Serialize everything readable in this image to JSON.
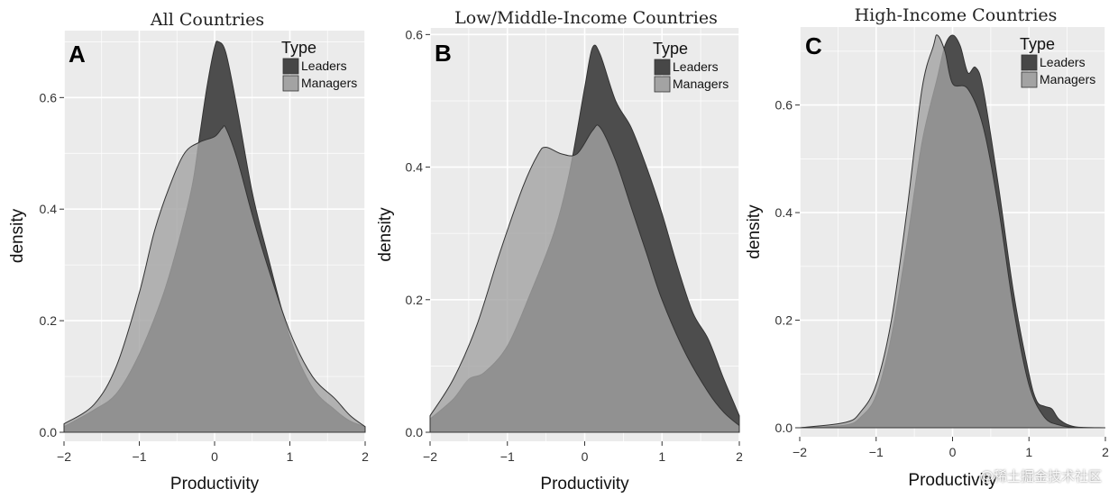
{
  "figure": {
    "colors": {
      "panel_bg": "#ebebeb",
      "grid": "#ffffff",
      "leaders": "#474747",
      "managers": "#a3a3a3",
      "outline": "#333333"
    },
    "watermark": "@稀土掘金技术社区"
  },
  "chart_data": [
    {
      "type": "area",
      "panel_label": "A",
      "title": "All Countries",
      "xlabel": "Productivity",
      "ylabel": "density",
      "xlim": [
        -2,
        2
      ],
      "ylim": [
        0,
        0.72
      ],
      "xticks": [
        -2,
        -1,
        0,
        1,
        2
      ],
      "xtick_labels": [
        "−2",
        "−1",
        "0",
        "1",
        "2"
      ],
      "yticks": [
        0,
        0.2,
        0.4,
        0.6
      ],
      "ytick_labels": [
        "0.0",
        "0.2",
        "0.4",
        "0.6"
      ],
      "grid": true,
      "legend": {
        "title": "Type",
        "position": "top-right",
        "entries": [
          "Leaders",
          "Managers"
        ]
      },
      "series": [
        {
          "name": "Leaders",
          "x": [
            -2,
            -1.6,
            -1.3,
            -1.0,
            -0.7,
            -0.5,
            -0.3,
            -0.2,
            -0.1,
            0.0,
            0.05,
            0.15,
            0.3,
            0.5,
            0.7,
            1.0,
            1.3,
            1.6,
            1.8,
            2.0
          ],
          "y": [
            0.01,
            0.04,
            0.07,
            0.14,
            0.24,
            0.33,
            0.44,
            0.53,
            0.62,
            0.69,
            0.7,
            0.68,
            0.58,
            0.43,
            0.32,
            0.17,
            0.08,
            0.04,
            0.02,
            0.01
          ]
        },
        {
          "name": "Managers",
          "x": [
            -2,
            -1.6,
            -1.3,
            -1.0,
            -0.8,
            -0.6,
            -0.4,
            -0.2,
            0.0,
            0.1,
            0.15,
            0.3,
            0.5,
            0.7,
            1.0,
            1.3,
            1.6,
            1.8,
            2.0
          ],
          "y": [
            0.015,
            0.05,
            0.12,
            0.25,
            0.36,
            0.44,
            0.5,
            0.52,
            0.53,
            0.545,
            0.545,
            0.49,
            0.39,
            0.3,
            0.18,
            0.1,
            0.06,
            0.03,
            0.01
          ]
        }
      ]
    },
    {
      "type": "area",
      "panel_label": "B",
      "title": "Low/Middle-Income Countries",
      "xlabel": "Productivity",
      "ylabel": "density",
      "xlim": [
        -2,
        2
      ],
      "ylim": [
        0,
        0.61
      ],
      "xticks": [
        -2,
        -1,
        0,
        1,
        2
      ],
      "xtick_labels": [
        "−2",
        "−1",
        "0",
        "1",
        "2"
      ],
      "yticks": [
        0,
        0.2,
        0.4,
        0.6
      ],
      "ytick_labels": [
        "0.0",
        "0.2",
        "0.4",
        "0.6"
      ],
      "grid": true,
      "legend": {
        "title": "Type",
        "position": "top-right",
        "entries": [
          "Leaders",
          "Managers"
        ]
      },
      "series": [
        {
          "name": "Leaders",
          "x": [
            -2,
            -1.7,
            -1.5,
            -1.3,
            -1.0,
            -0.7,
            -0.4,
            -0.2,
            0.0,
            0.1,
            0.2,
            0.4,
            0.6,
            0.8,
            1.0,
            1.2,
            1.4,
            1.6,
            1.8,
            2.0
          ],
          "y": [
            0.02,
            0.05,
            0.08,
            0.09,
            0.13,
            0.21,
            0.3,
            0.39,
            0.52,
            0.58,
            0.57,
            0.5,
            0.46,
            0.4,
            0.33,
            0.25,
            0.18,
            0.14,
            0.08,
            0.025
          ]
        },
        {
          "name": "Managers",
          "x": [
            -2,
            -1.7,
            -1.4,
            -1.1,
            -0.8,
            -0.6,
            -0.5,
            -0.3,
            -0.1,
            0.1,
            0.2,
            0.4,
            0.6,
            0.8,
            1.0,
            1.3,
            1.6,
            1.8,
            2.0
          ],
          "y": [
            0.025,
            0.08,
            0.16,
            0.27,
            0.37,
            0.42,
            0.43,
            0.42,
            0.42,
            0.455,
            0.46,
            0.41,
            0.34,
            0.27,
            0.2,
            0.12,
            0.06,
            0.03,
            0.01
          ]
        }
      ]
    },
    {
      "type": "area",
      "panel_label": "C",
      "title": "High-Income Countries",
      "xlabel": "Productivity",
      "ylabel": "density",
      "xlim": [
        -2,
        2
      ],
      "ylim": [
        0,
        0.745
      ],
      "xticks": [
        -2,
        -1,
        0,
        1,
        2
      ],
      "xtick_labels": [
        "−2",
        "−1",
        "0",
        "1",
        "2"
      ],
      "yticks": [
        0,
        0.2,
        0.4,
        0.6
      ],
      "ytick_labels": [
        "0.0",
        "0.2",
        "0.4",
        "0.6"
      ],
      "grid": true,
      "legend": {
        "title": "Type",
        "position": "top-right",
        "entries": [
          "Leaders",
          "Managers"
        ]
      },
      "series": [
        {
          "name": "Leaders",
          "x": [
            -2,
            -1.4,
            -1.2,
            -1.0,
            -0.8,
            -0.6,
            -0.4,
            -0.2,
            -0.1,
            0.0,
            0.1,
            0.2,
            0.3,
            0.4,
            0.6,
            0.8,
            1.0,
            1.1,
            1.2,
            1.3,
            1.4,
            1.6,
            2.0
          ],
          "y": [
            0,
            0.005,
            0.02,
            0.06,
            0.17,
            0.34,
            0.53,
            0.65,
            0.71,
            0.73,
            0.71,
            0.66,
            0.67,
            0.63,
            0.45,
            0.25,
            0.1,
            0.05,
            0.04,
            0.035,
            0.015,
            0.002,
            0
          ]
        },
        {
          "name": "Managers",
          "x": [
            -2,
            -1.4,
            -1.2,
            -1.0,
            -0.8,
            -0.6,
            -0.4,
            -0.25,
            -0.2,
            -0.1,
            0.0,
            0.2,
            0.4,
            0.6,
            0.8,
            1.0,
            1.2,
            1.4,
            1.6,
            2.0
          ],
          "y": [
            0,
            0.01,
            0.03,
            0.08,
            0.2,
            0.4,
            0.63,
            0.71,
            0.73,
            0.7,
            0.64,
            0.63,
            0.56,
            0.41,
            0.22,
            0.08,
            0.02,
            0.005,
            0.001,
            0
          ]
        }
      ]
    }
  ]
}
